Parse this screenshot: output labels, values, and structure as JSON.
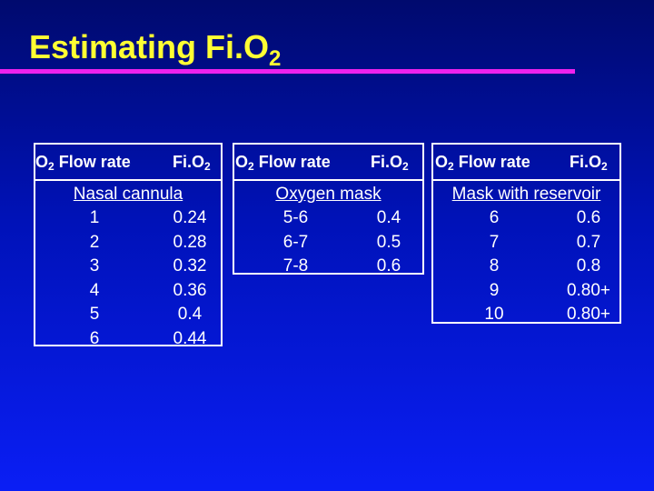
{
  "slide": {
    "title_main": "Estimating Fi.O",
    "title_sub": "2"
  },
  "tables": [
    {
      "col1_main": "O",
      "col1_sub": "2",
      "col1_rest": " Flow rate",
      "col2_main": "Fi.O",
      "col2_sub": "2",
      "section": "Nasal cannula",
      "rows": [
        {
          "flow": "1",
          "fio2": "0.24"
        },
        {
          "flow": "2",
          "fio2": "0.28"
        },
        {
          "flow": "3",
          "fio2": "0.32"
        },
        {
          "flow": "4",
          "fio2": "0.36"
        },
        {
          "flow": "5",
          "fio2": "0.4"
        },
        {
          "flow": "6",
          "fio2": "0.44"
        }
      ]
    },
    {
      "col1_main": "O",
      "col1_sub": "2",
      "col1_rest": " Flow rate",
      "col2_main": "Fi.O",
      "col2_sub": "2",
      "section": "Oxygen mask",
      "rows": [
        {
          "flow": "5-6",
          "fio2": "0.4"
        },
        {
          "flow": "6-7",
          "fio2": "0.5"
        },
        {
          "flow": "7-8",
          "fio2": "0.6"
        }
      ]
    },
    {
      "col1_main": "O",
      "col1_sub": "2",
      "col1_rest": " Flow rate",
      "col2_main": "Fi.O",
      "col2_sub": "2",
      "section": "Mask with reservoir",
      "rows": [
        {
          "flow": "6",
          "fio2": "0.6"
        },
        {
          "flow": "7",
          "fio2": "0.7"
        },
        {
          "flow": "8",
          "fio2": "0.8"
        },
        {
          "flow": "9",
          "fio2": "0.80+"
        },
        {
          "flow": "10",
          "fio2": "0.80+"
        }
      ]
    }
  ],
  "colors": {
    "background_top": "#000a6e",
    "background_bottom": "#0a1ef5",
    "title": "#ffff33",
    "title_rule": "#ee22ee",
    "table_text": "#ffffff"
  }
}
